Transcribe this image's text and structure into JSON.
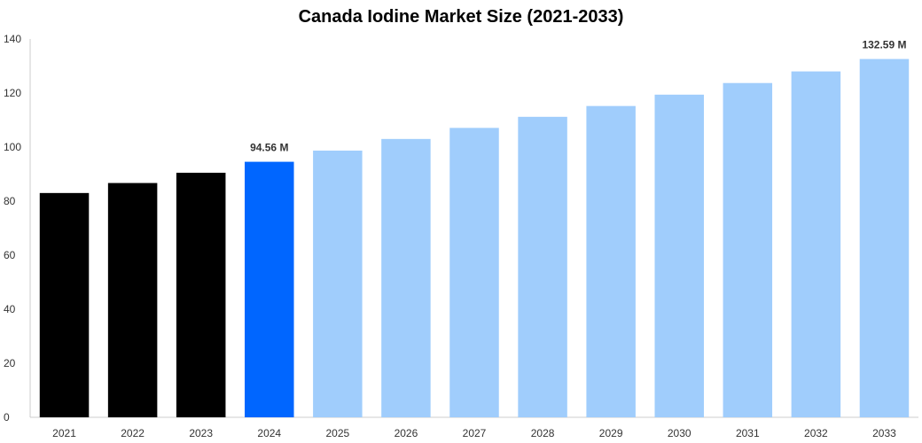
{
  "chart_data": {
    "type": "bar",
    "title": "Canada Iodine Market Size (2021-2033)",
    "xlabel": "",
    "ylabel": "",
    "categories": [
      "2021",
      "2022",
      "2023",
      "2024",
      "2025",
      "2026",
      "2027",
      "2028",
      "2029",
      "2030",
      "2031",
      "2032",
      "2033"
    ],
    "values": [
      83.0,
      86.7,
      90.5,
      94.56,
      98.7,
      103.0,
      107.1,
      111.2,
      115.2,
      119.4,
      123.7,
      128.0,
      132.59
    ],
    "bar_colors": [
      "#000000",
      "#000000",
      "#000000",
      "#0066ff",
      "#a0cdfc",
      "#a0cdfc",
      "#a0cdfc",
      "#a0cdfc",
      "#a0cdfc",
      "#a0cdfc",
      "#a0cdfc",
      "#a0cdfc",
      "#a0cdfc"
    ],
    "data_labels": [
      {
        "index": 3,
        "text": "94.56 M"
      },
      {
        "index": 12,
        "text": "132.59 M"
      }
    ],
    "ylim": [
      0,
      140
    ],
    "yticks": [
      0,
      20,
      40,
      60,
      80,
      100,
      120,
      140
    ],
    "grid": false,
    "legend": "none"
  }
}
